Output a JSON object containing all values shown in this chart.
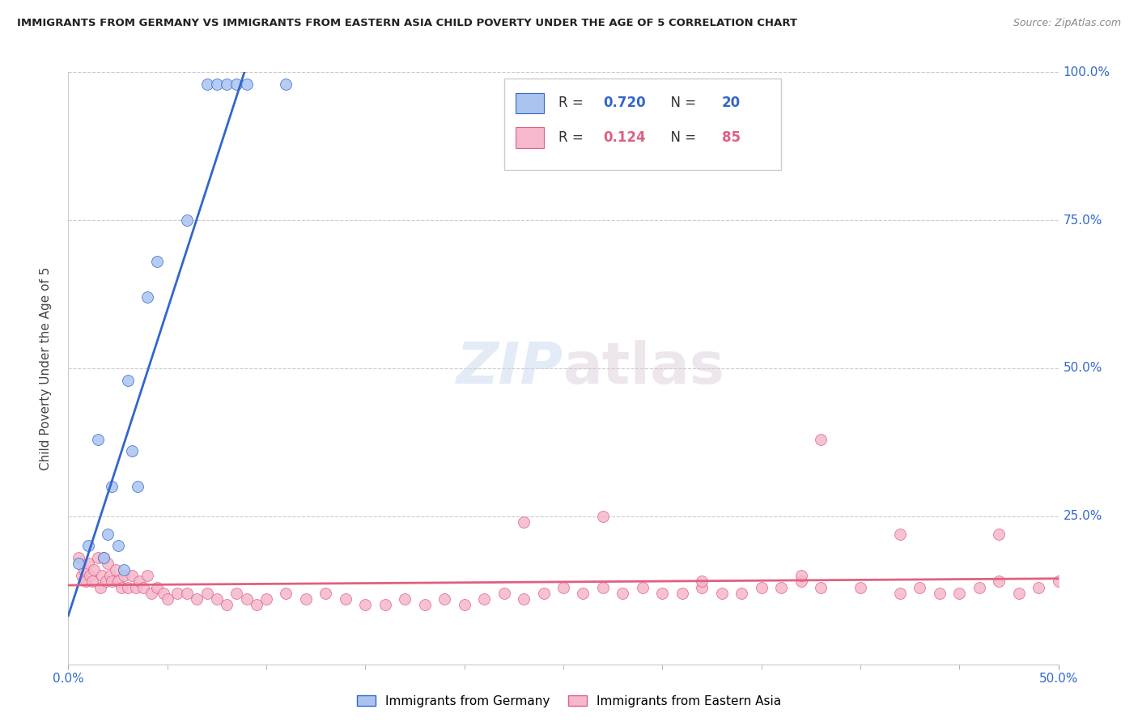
{
  "title": "IMMIGRANTS FROM GERMANY VS IMMIGRANTS FROM EASTERN ASIA CHILD POVERTY UNDER THE AGE OF 5 CORRELATION CHART",
  "source": "Source: ZipAtlas.com",
  "ylabel": "Child Poverty Under the Age of 5",
  "legend_germany": "Immigrants from Germany",
  "legend_eastern_asia": "Immigrants from Eastern Asia",
  "R_germany": "0.720",
  "N_germany": "20",
  "R_eastern_asia": "0.124",
  "N_eastern_asia": "85",
  "color_germany": "#aac4f0",
  "color_eastern_asia": "#f5b8cc",
  "line_color_germany": "#3366cc",
  "line_color_eastern_asia": "#e06080",
  "watermark_zip": "ZIP",
  "watermark_atlas": "atlas",
  "germany_x": [
    0.005,
    0.01,
    0.015,
    0.018,
    0.02,
    0.022,
    0.025,
    0.028,
    0.03,
    0.032,
    0.035,
    0.04,
    0.045,
    0.06,
    0.07,
    0.075,
    0.08,
    0.085,
    0.09,
    0.11
  ],
  "germany_y": [
    0.17,
    0.2,
    0.38,
    0.18,
    0.22,
    0.3,
    0.2,
    0.16,
    0.48,
    0.36,
    0.3,
    0.62,
    0.68,
    0.75,
    0.98,
    0.98,
    0.98,
    0.98,
    0.98,
    0.98
  ],
  "eastern_asia_x": [
    0.005,
    0.007,
    0.008,
    0.009,
    0.01,
    0.011,
    0.012,
    0.013,
    0.015,
    0.016,
    0.017,
    0.018,
    0.019,
    0.02,
    0.021,
    0.022,
    0.024,
    0.025,
    0.027,
    0.028,
    0.03,
    0.032,
    0.034,
    0.036,
    0.038,
    0.04,
    0.042,
    0.045,
    0.048,
    0.05,
    0.055,
    0.06,
    0.065,
    0.07,
    0.075,
    0.08,
    0.085,
    0.09,
    0.095,
    0.1,
    0.11,
    0.12,
    0.13,
    0.14,
    0.15,
    0.16,
    0.17,
    0.18,
    0.19,
    0.2,
    0.21,
    0.22,
    0.23,
    0.24,
    0.25,
    0.26,
    0.27,
    0.28,
    0.29,
    0.3,
    0.31,
    0.32,
    0.33,
    0.34,
    0.35,
    0.36,
    0.37,
    0.38,
    0.4,
    0.42,
    0.43,
    0.44,
    0.45,
    0.46,
    0.47,
    0.48,
    0.49,
    0.5,
    0.38,
    0.27,
    0.23,
    0.32,
    0.37,
    0.42,
    0.47
  ],
  "eastern_asia_y": [
    0.18,
    0.15,
    0.16,
    0.14,
    0.17,
    0.15,
    0.14,
    0.16,
    0.18,
    0.13,
    0.15,
    0.18,
    0.14,
    0.17,
    0.15,
    0.14,
    0.16,
    0.14,
    0.13,
    0.15,
    0.13,
    0.15,
    0.13,
    0.14,
    0.13,
    0.15,
    0.12,
    0.13,
    0.12,
    0.11,
    0.12,
    0.12,
    0.11,
    0.12,
    0.11,
    0.1,
    0.12,
    0.11,
    0.1,
    0.11,
    0.12,
    0.11,
    0.12,
    0.11,
    0.1,
    0.1,
    0.11,
    0.1,
    0.11,
    0.1,
    0.11,
    0.12,
    0.11,
    0.12,
    0.13,
    0.12,
    0.13,
    0.12,
    0.13,
    0.12,
    0.12,
    0.13,
    0.12,
    0.12,
    0.13,
    0.13,
    0.14,
    0.13,
    0.13,
    0.12,
    0.13,
    0.12,
    0.12,
    0.13,
    0.14,
    0.12,
    0.13,
    0.14,
    0.38,
    0.25,
    0.24,
    0.14,
    0.15,
    0.22,
    0.22
  ],
  "xlim": [
    0.0,
    0.5
  ],
  "ylim": [
    0.0,
    1.0
  ],
  "background_color": "#ffffff",
  "grid_color": "#cccccc"
}
